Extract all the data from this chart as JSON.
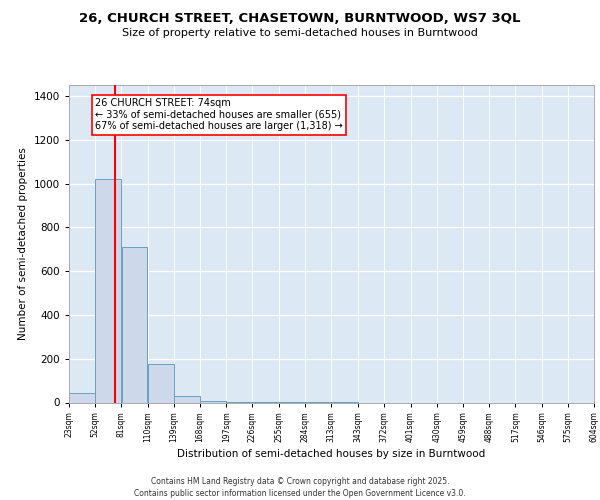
{
  "title1": "26, CHURCH STREET, CHASETOWN, BURNTWOOD, WS7 3QL",
  "title2": "Size of property relative to semi-detached houses in Burntwood",
  "xlabel": "Distribution of semi-detached houses by size in Burntwood",
  "ylabel": "Number of semi-detached properties",
  "bar_edges": [
    23,
    52,
    81,
    110,
    139,
    168,
    197,
    226,
    255,
    284,
    313,
    343,
    372,
    401,
    430,
    459,
    488,
    517,
    546,
    575,
    604
  ],
  "bar_heights": [
    45,
    1020,
    710,
    175,
    30,
    5,
    2,
    1,
    1,
    1,
    1,
    0,
    0,
    0,
    0,
    0,
    0,
    0,
    0,
    0
  ],
  "bar_color": "#cdd9ea",
  "bar_edge_color": "#6a9ec4",
  "property_size": 74,
  "vline_color": "red",
  "annotation_text": "26 CHURCH STREET: 74sqm\n← 33% of semi-detached houses are smaller (655)\n67% of semi-detached houses are larger (1,318) →",
  "annotation_box_color": "white",
  "annotation_box_edge": "red",
  "ylim": [
    0,
    1450
  ],
  "yticks": [
    0,
    200,
    400,
    600,
    800,
    1000,
    1200,
    1400
  ],
  "footer": "Contains HM Land Registry data © Crown copyright and database right 2025.\nContains public sector information licensed under the Open Government Licence v3.0.",
  "background_color": "#dce9f5"
}
